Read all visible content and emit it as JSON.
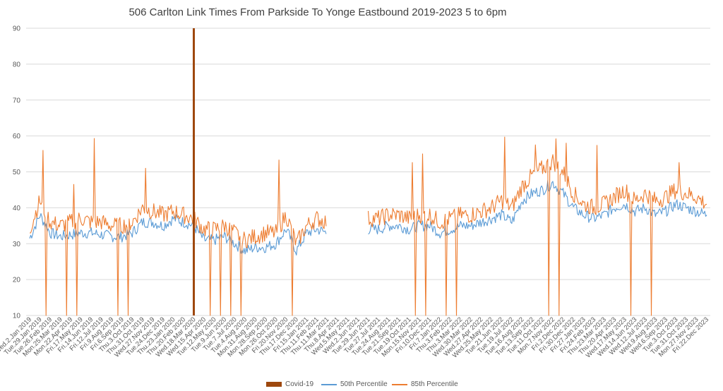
{
  "chart_data": {
    "type": "line",
    "title": "506 Carlton Link Times From Parkside To Yonge Eastbound 2019-2023 5 to 6pm",
    "xlabel": "",
    "ylabel": "",
    "ylim": [
      10,
      90
    ],
    "yticks": [
      10,
      20,
      30,
      40,
      50,
      60,
      70,
      80,
      90
    ],
    "grid": true,
    "legend_position": "bottom",
    "x_tick_labels": [
      "Wed.2.Jan 2019",
      "Tue.29.Jan 2019",
      "Tue.26.Feb 2019",
      "Mon.25.Mar 2019",
      "Mon.22.Apr 2019",
      "Fri.17.May 2019",
      "Fri.14.Jun 2019",
      "Fri.12.Jul 2019",
      "Fri.9.Aug 2019",
      "Fri.6.Sep 2019",
      "Thu.3.Oct 2019",
      "Thu.31.Oct 2019",
      "Wed.27.Nov 2019",
      "Tue.24.Dec 2019",
      "Thu.23.Jan 2020",
      "Thu.20.Feb 2020",
      "Wed.18.Mar 2020",
      "Wed.15.Apr 2020",
      "Tue.12.May 2020",
      "Tue.9.Jun 2020",
      "Tue.7.Jul 2020",
      "Tue.4.Aug 2020",
      "Mon.31.Aug 2020",
      "Mon.28.Sep 2020",
      "Mon.26.Oct 2020",
      "Fri.20.Nov 2020",
      "Thu.17.Dec 2020",
      "Fri.15.Jan 2021",
      "Thu.11.Feb 2021",
      "Thu.11.Mar 2021",
      "Thu.8.Apr 2021",
      "Wed.5.May 2021",
      "Wed.2.Jun 2021",
      "Tue.29.Jun 2021",
      "Tue.27.Jul 2021",
      "Tue.24.Aug 2021",
      "Tue.21.Sep 2021",
      "Tue.19.Oct 2021",
      "Mon.15.Nov 2021",
      "Fri.10.Dec 2021",
      "Fri.7.Jan 2022",
      "Thu.3.Feb 2022",
      "Thu.3.Mar 2022",
      "Wed.30.Mar 2022",
      "Wed.27.Apr 2022",
      "Wed.25.May 2022",
      "Tue.21.Jun 2022",
      "Tue.19.Jul 2022",
      "Tue.16.Aug 2022",
      "Tue.13.Sep 2022",
      "Tue.11.Oct 2022",
      "Mon.7.Nov 2022",
      "Fri.2.Dec 2022",
      "Fri.30.Dec 2022",
      "Fri.27.Jan 2023",
      "Fri.24.Feb 2023",
      "Thu.23.Mar 2023",
      "Thu.20.Apr 2023",
      "Wed.17.May 2023",
      "Wed.14.Jun 2023",
      "Wed.12.Jul 2023",
      "Wed.9.Aug 2023",
      "Wed.6.Sep 2023",
      "Tue.3.Oct 2023",
      "Tue.31.Oct 2023",
      "Mon.27.Nov 2023",
      "Fri.22.Dec 2023"
    ],
    "covid_marker": {
      "name": "Covid-19",
      "x": "Wed.18.Mar 2020",
      "value": 90,
      "color": "#9E480E"
    },
    "series": [
      {
        "name": "50th Percentile",
        "color": "#5B9BD5",
        "x": [
          "Wed.2.Jan 2019",
          "Tue.29.Jan 2019",
          "Tue.26.Feb 2019",
          "Mon.25.Mar 2019",
          "Mon.22.Apr 2019",
          "Fri.17.May 2019",
          "Fri.14.Jun 2019",
          "Fri.12.Jul 2019",
          "Fri.9.Aug 2019",
          "Fri.6.Sep 2019",
          "Thu.3.Oct 2019",
          "Thu.31.Oct 2019",
          "Wed.27.Nov 2019",
          "Tue.24.Dec 2019",
          "Thu.23.Jan 2020",
          "Thu.20.Feb 2020",
          "Wed.18.Mar 2020",
          "Wed.15.Apr 2020",
          "Tue.12.May 2020",
          "Tue.9.Jun 2020",
          "Tue.7.Jul 2020",
          "Tue.4.Aug 2020",
          "Mon.31.Aug 2020",
          "Mon.28.Sep 2020",
          "Mon.26.Oct 2020",
          "Fri.20.Nov 2020",
          "Thu.17.Dec 2020",
          "Fri.15.Jan 2021",
          "Thu.11.Feb 2021",
          "Thu.11.Mar 2021",
          "Thu.8.Apr 2021",
          "Wed.5.May 2021",
          "Wed.2.Jun 2021",
          "Tue.29.Jun 2021",
          "Tue.27.Jul 2021",
          "Tue.24.Aug 2021",
          "Tue.21.Sep 2021",
          "Tue.19.Oct 2021",
          "Mon.15.Nov 2021",
          "Fri.10.Dec 2021",
          "Fri.7.Jan 2022",
          "Thu.3.Feb 2022",
          "Thu.3.Mar 2022",
          "Wed.30.Mar 2022",
          "Wed.27.Apr 2022",
          "Wed.25.May 2022",
          "Tue.21.Jun 2022",
          "Tue.19.Jul 2022",
          "Tue.16.Aug 2022",
          "Tue.13.Sep 2022",
          "Tue.11.Oct 2022",
          "Mon.7.Nov 2022",
          "Fri.2.Dec 2022",
          "Fri.30.Dec 2022",
          "Fri.27.Jan 2023",
          "Fri.24.Feb 2023",
          "Thu.23.Mar 2023",
          "Thu.20.Apr 2023",
          "Wed.17.May 2023",
          "Wed.14.Jun 2023",
          "Wed.12.Jul 2023",
          "Wed.9.Aug 2023",
          "Wed.6.Sep 2023",
          "Tue.3.Oct 2023",
          "Tue.31.Oct 2023",
          "Mon.27.Nov 2023",
          "Fri.22.Dec 2023"
        ],
        "values": [
          31.5,
          38,
          33,
          32,
          32.5,
          33,
          33,
          32.5,
          32,
          32,
          33,
          36,
          36,
          35,
          37,
          36,
          35,
          31,
          31,
          32,
          30,
          28,
          29,
          29,
          30,
          34,
          28,
          33,
          34,
          33,
          null,
          null,
          null,
          34,
          34,
          35,
          35,
          34,
          35,
          35,
          33,
          34,
          35,
          35,
          36,
          37,
          38,
          36,
          42,
          44,
          45,
          47,
          44,
          40,
          38,
          37,
          38,
          40,
          41,
          39,
          40,
          38,
          39,
          41,
          40,
          39,
          38
        ]
      },
      {
        "name": "85th Percentile",
        "color": "#ED7D31",
        "x": [
          "Wed.2.Jan 2019",
          "Tue.29.Jan 2019",
          "Tue.26.Feb 2019",
          "Mon.25.Mar 2019",
          "Mon.22.Apr 2019",
          "Fri.17.May 2019",
          "Fri.14.Jun 2019",
          "Fri.12.Jul 2019",
          "Fri.9.Aug 2019",
          "Fri.6.Sep 2019",
          "Thu.3.Oct 2019",
          "Thu.31.Oct 2019",
          "Wed.27.Nov 2019",
          "Tue.24.Dec 2019",
          "Thu.23.Jan 2020",
          "Thu.20.Feb 2020",
          "Wed.18.Mar 2020",
          "Wed.15.Apr 2020",
          "Tue.12.May 2020",
          "Tue.9.Jun 2020",
          "Tue.7.Jul 2020",
          "Tue.4.Aug 2020",
          "Mon.31.Aug 2020",
          "Mon.28.Sep 2020",
          "Mon.26.Oct 2020",
          "Fri.20.Nov 2020",
          "Thu.17.Dec 2020",
          "Fri.15.Jan 2021",
          "Thu.11.Feb 2021",
          "Thu.11.Mar 2021",
          "Thu.8.Apr 2021",
          "Wed.5.May 2021",
          "Wed.2.Jun 2021",
          "Tue.29.Jun 2021",
          "Tue.27.Jul 2021",
          "Tue.24.Aug 2021",
          "Tue.21.Sep 2021",
          "Tue.19.Oct 2021",
          "Mon.15.Nov 2021",
          "Fri.10.Dec 2021",
          "Fri.7.Jan 2022",
          "Thu.3.Feb 2022",
          "Thu.3.Mar 2022",
          "Wed.30.Mar 2022",
          "Wed.27.Apr 2022",
          "Wed.25.May 2022",
          "Tue.21.Jun 2022",
          "Tue.19.Jul 2022",
          "Tue.16.Aug 2022",
          "Tue.13.Sep 2022",
          "Tue.11.Oct 2022",
          "Mon.7.Nov 2022",
          "Fri.2.Dec 2022",
          "Fri.30.Dec 2022",
          "Fri.27.Jan 2023",
          "Fri.24.Feb 2023",
          "Thu.23.Mar 2023",
          "Thu.20.Apr 2023",
          "Wed.17.May 2023",
          "Wed.14.Jun 2023",
          "Wed.12.Jul 2023",
          "Wed.9.Aug 2023",
          "Wed.6.Sep 2023",
          "Tue.3.Oct 2023",
          "Tue.31.Oct 2023",
          "Mon.27.Nov 2023",
          "Fri.22.Dec 2023"
        ],
        "values": [
          34,
          42,
          36,
          35,
          36,
          37,
          36,
          36,
          35,
          35,
          36,
          40,
          39,
          38,
          39,
          38,
          37,
          34,
          34,
          35,
          33,
          31,
          32,
          33,
          33,
          38,
          30,
          35,
          37,
          36,
          null,
          null,
          null,
          37,
          37,
          38,
          38,
          37,
          38,
          38,
          36,
          37,
          38,
          38,
          39,
          40,
          42,
          40,
          46,
          49,
          51,
          53,
          50,
          44,
          41,
          40,
          41,
          43,
          45,
          42,
          44,
          42,
          43,
          45,
          44,
          43,
          41
        ]
      }
    ],
    "spikes_85th": [
      {
        "x": "Tue.29.Jan 2019",
        "value": 56
      },
      {
        "x": "Mon.22.Apr 2019",
        "value": 46.5
      },
      {
        "x": "Fri.14.Jun 2019",
        "value": 59.3
      },
      {
        "x": "Thu.31.Oct 2019",
        "value": 51
      },
      {
        "x": "Mon.26.Oct 2020",
        "value": 53.3
      },
      {
        "x": "Thu.11.Mar 2021",
        "value": 48.5
      },
      {
        "x": "Tue.19.Oct 2021",
        "value": 52.6
      },
      {
        "x": "Mon.15.Nov 2021",
        "value": 55
      },
      {
        "x": "Tue.21.Jun 2022",
        "value": 59.7
      },
      {
        "x": "Tue.13.Sep 2022",
        "value": 57.5
      },
      {
        "x": "Mon.7.Nov 2022",
        "value": 59.2
      },
      {
        "x": "Fri.2.Dec 2022",
        "value": 58
      },
      {
        "x": "Fri.24.Feb 2023",
        "value": 57.4
      },
      {
        "x": "Tue.3.Oct 2023",
        "value": 52.6
      }
    ],
    "dips": [
      {
        "x": "Tue.29.Jan 2019",
        "value": 10
      },
      {
        "x": "Mon.25.Mar 2019",
        "value": 10
      },
      {
        "x": "Mon.22.Apr 2019",
        "value": 10
      },
      {
        "x": "Fri.9.Aug 2019",
        "value": 10
      },
      {
        "x": "Fri.6.Sep 2019",
        "value": 10
      },
      {
        "x": "Wed.15.Apr 2020",
        "value": 10
      },
      {
        "x": "Tue.12.May 2020",
        "value": 10
      },
      {
        "x": "Tue.9.Jun 2020",
        "value": 10
      },
      {
        "x": "Tue.7.Jul 2020",
        "value": 10
      },
      {
        "x": "Fri.20.Nov 2020",
        "value": 10
      },
      {
        "x": "Thu.8.Apr 2021",
        "value": 10
      },
      {
        "x": "Tue.19.Oct 2021",
        "value": 10
      },
      {
        "x": "Mon.15.Nov 2021",
        "value": 10
      },
      {
        "x": "Fri.7.Jan 2022",
        "value": 10
      },
      {
        "x": "Thu.3.Feb 2022",
        "value": 10
      },
      {
        "x": "Tue.11.Oct 2022",
        "value": 10
      },
      {
        "x": "Mon.7.Nov 2022",
        "value": 10
      },
      {
        "x": "Wed.17.May 2023",
        "value": 10
      },
      {
        "x": "Wed.12.Jul 2023",
        "value": 10
      }
    ]
  }
}
